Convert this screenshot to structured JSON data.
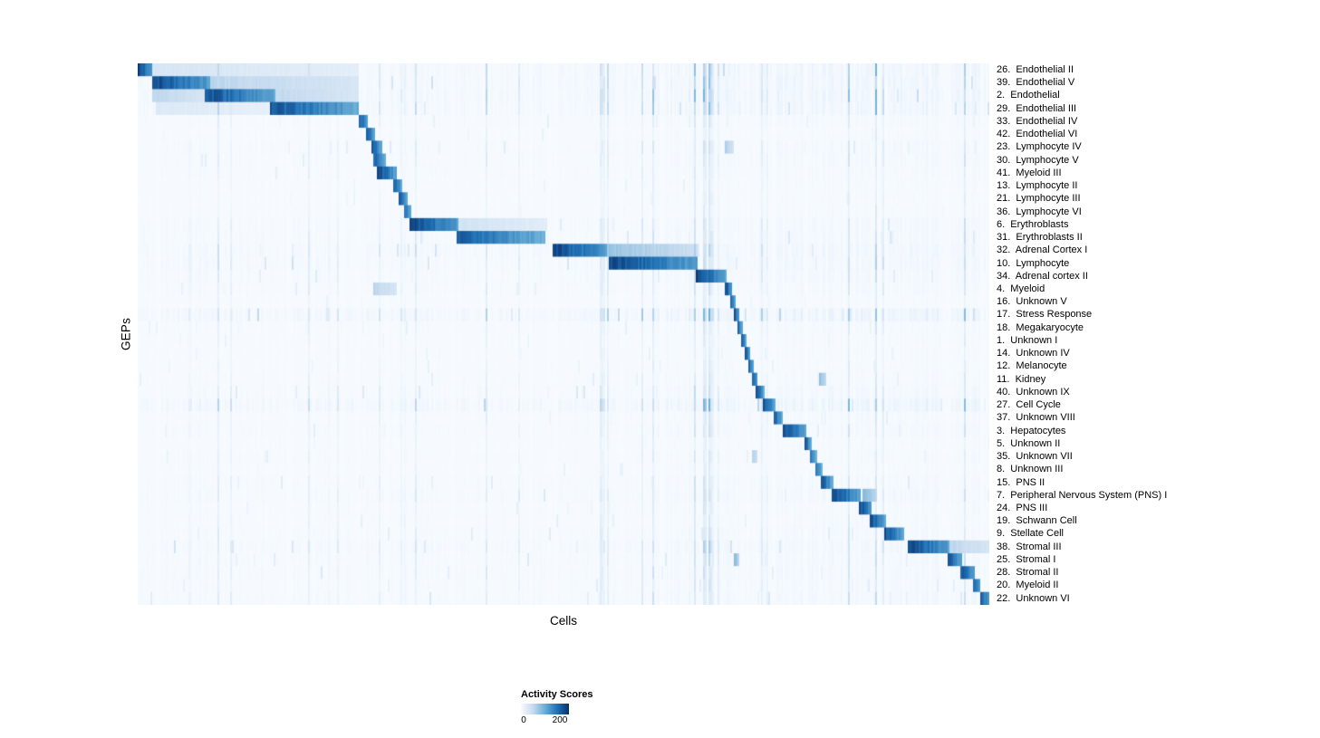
{
  "chart_data": {
    "type": "heatmap",
    "xlabel": "Cells",
    "ylabel": "GEPs",
    "legend_title": "Activity Scores",
    "legend_ticks": [
      "0",
      "200"
    ],
    "n_rows": 42,
    "grid": false,
    "legend_position": "bottom",
    "colormap": [
      {
        "t": 0.0,
        "color": "#f7fbff"
      },
      {
        "t": 0.25,
        "color": "#c6dbef"
      },
      {
        "t": 0.5,
        "color": "#6baed6"
      },
      {
        "t": 0.75,
        "color": "#2171b5"
      },
      {
        "t": 1.0,
        "color": "#08306b"
      }
    ],
    "rows": [
      {
        "label": "26.  Endothelial II",
        "blocks": [
          [
            0.0,
            0.016,
            1.0
          ],
          [
            0.016,
            0.26,
            0.18
          ]
        ],
        "noise": 0.5
      },
      {
        "label": "39.  Endothelial V",
        "blocks": [
          [
            0.016,
            0.085,
            1.0
          ],
          [
            0.085,
            0.26,
            0.3
          ]
        ],
        "noise": 0.5
      },
      {
        "label": "2.  Endothelial",
        "blocks": [
          [
            0.078,
            0.16,
            0.95
          ],
          [
            0.016,
            0.078,
            0.3
          ],
          [
            0.16,
            0.26,
            0.28
          ]
        ],
        "noise": 0.55
      },
      {
        "label": "29.  Endothelial III",
        "blocks": [
          [
            0.155,
            0.26,
            0.92
          ],
          [
            0.02,
            0.155,
            0.15
          ]
        ],
        "noise": 0.5
      },
      {
        "label": "33.  Endothelial IV",
        "blocks": [
          [
            0.258,
            0.27,
            0.95
          ]
        ],
        "noise": 0.2
      },
      {
        "label": "42.  Endothelial VI",
        "blocks": [
          [
            0.268,
            0.279,
            0.9
          ]
        ],
        "noise": 0.15
      },
      {
        "label": "23.  Lymphocyte IV",
        "blocks": [
          [
            0.275,
            0.287,
            0.9
          ],
          [
            0.69,
            0.7,
            0.35
          ]
        ],
        "noise": 0.25
      },
      {
        "label": "30.  Lymphocyte V",
        "blocks": [
          [
            0.277,
            0.292,
            0.85
          ]
        ],
        "noise": 0.25
      },
      {
        "label": "41.  Myeloid III",
        "blocks": [
          [
            0.28,
            0.303,
            1.0
          ]
        ],
        "noise": 0.2
      },
      {
        "label": "13.  Lymphocyte II",
        "blocks": [
          [
            0.3,
            0.31,
            0.9
          ]
        ],
        "noise": 0.15
      },
      {
        "label": "21.  Lymphocyte III",
        "blocks": [
          [
            0.306,
            0.316,
            0.9
          ]
        ],
        "noise": 0.15
      },
      {
        "label": "36.  Lymphocyte VI",
        "blocks": [
          [
            0.312,
            0.321,
            0.85
          ]
        ],
        "noise": 0.15
      },
      {
        "label": "6.  Erythroblasts",
        "blocks": [
          [
            0.319,
            0.377,
            1.0
          ],
          [
            0.377,
            0.48,
            0.2
          ]
        ],
        "noise": 0.3
      },
      {
        "label": "31.  Erythroblasts II",
        "blocks": [
          [
            0.374,
            0.478,
            0.88
          ]
        ],
        "noise": 0.3
      },
      {
        "label": "32.  Adrenal Cortex I",
        "blocks": [
          [
            0.487,
            0.552,
            1.0
          ],
          [
            0.552,
            0.657,
            0.4
          ]
        ],
        "noise": 0.45
      },
      {
        "label": "10.  Lymphocyte",
        "blocks": [
          [
            0.553,
            0.658,
            1.0
          ]
        ],
        "noise": 0.4
      },
      {
        "label": "34.  Adrenal cortex II",
        "blocks": [
          [
            0.656,
            0.691,
            1.0
          ]
        ],
        "noise": 0.3
      },
      {
        "label": "4.  Myeloid",
        "blocks": [
          [
            0.69,
            0.698,
            1.0
          ],
          [
            0.276,
            0.303,
            0.3
          ]
        ],
        "noise": 0.25
      },
      {
        "label": "16.  Unknown V",
        "blocks": [
          [
            0.696,
            0.703,
            0.9
          ]
        ],
        "noise": 0.15
      },
      {
        "label": "17.  Stress Response",
        "blocks": [
          [
            0.701,
            0.707,
            0.95
          ]
        ],
        "noise": 0.65
      },
      {
        "label": "18.  Megakaryocyte",
        "blocks": [
          [
            0.705,
            0.711,
            0.9
          ]
        ],
        "noise": 0.2
      },
      {
        "label": "1.  Unknown I",
        "blocks": [
          [
            0.71,
            0.716,
            0.85
          ]
        ],
        "noise": 0.15
      },
      {
        "label": "14.  Unknown IV",
        "blocks": [
          [
            0.714,
            0.72,
            0.9
          ]
        ],
        "noise": 0.15
      },
      {
        "label": "12.  Melanocyte",
        "blocks": [
          [
            0.718,
            0.724,
            0.9
          ]
        ],
        "noise": 0.15
      },
      {
        "label": "11.  Kidney",
        "blocks": [
          [
            0.722,
            0.729,
            0.9
          ],
          [
            0.8,
            0.81,
            0.45
          ]
        ],
        "noise": 0.2
      },
      {
        "label": "40.  Unknown IX",
        "blocks": [
          [
            0.727,
            0.737,
            0.9
          ]
        ],
        "noise": 0.3
      },
      {
        "label": "27.  Cell Cycle",
        "blocks": [
          [
            0.735,
            0.749,
            0.95
          ]
        ],
        "noise": 0.6
      },
      {
        "label": "37.  Unknown VIII",
        "blocks": [
          [
            0.747,
            0.759,
            0.9
          ]
        ],
        "noise": 0.2
      },
      {
        "label": "3.  Hepatocytes",
        "blocks": [
          [
            0.758,
            0.786,
            1.0
          ]
        ],
        "noise": 0.25
      },
      {
        "label": "5.  Unknown II",
        "blocks": [
          [
            0.784,
            0.792,
            0.9
          ]
        ],
        "noise": 0.15
      },
      {
        "label": "35.  Unknown VII",
        "blocks": [
          [
            0.79,
            0.798,
            0.85
          ],
          [
            0.722,
            0.728,
            0.35
          ]
        ],
        "noise": 0.2
      },
      {
        "label": "8.  Unknown III",
        "blocks": [
          [
            0.796,
            0.804,
            0.9
          ]
        ],
        "noise": 0.15
      },
      {
        "label": "15.  PNS II",
        "blocks": [
          [
            0.802,
            0.817,
            0.95
          ]
        ],
        "noise": 0.25
      },
      {
        "label": "7.  Peripheral Nervous System (PNS) I",
        "blocks": [
          [
            0.815,
            0.849,
            1.0
          ],
          [
            0.852,
            0.868,
            0.5
          ]
        ],
        "noise": 0.3
      },
      {
        "label": "24.  PNS III",
        "blocks": [
          [
            0.847,
            0.863,
            1.0
          ]
        ],
        "noise": 0.2
      },
      {
        "label": "19.  Schwann Cell",
        "blocks": [
          [
            0.861,
            0.879,
            0.95
          ]
        ],
        "noise": 0.2
      },
      {
        "label": "9.  Stellate Cell",
        "blocks": [
          [
            0.877,
            0.901,
            0.95
          ]
        ],
        "noise": 0.25
      },
      {
        "label": "38.  Stromal III",
        "blocks": [
          [
            0.905,
            0.954,
            1.0
          ],
          [
            0.954,
            1.0,
            0.3
          ]
        ],
        "noise": 0.4
      },
      {
        "label": "25.  Stromal I",
        "blocks": [
          [
            0.952,
            0.969,
            0.95
          ],
          [
            0.701,
            0.707,
            0.45
          ]
        ],
        "noise": 0.3
      },
      {
        "label": "28.  Stromal II",
        "blocks": [
          [
            0.966,
            0.985,
            0.95
          ]
        ],
        "noise": 0.3
      },
      {
        "label": "20.  Myeloid II",
        "blocks": [
          [
            0.982,
            0.991,
            0.9
          ]
        ],
        "noise": 0.25
      },
      {
        "label": "22.  Unknown VI",
        "blocks": [
          [
            0.99,
            1.0,
            1.0
          ]
        ],
        "noise": 0.3
      }
    ]
  }
}
